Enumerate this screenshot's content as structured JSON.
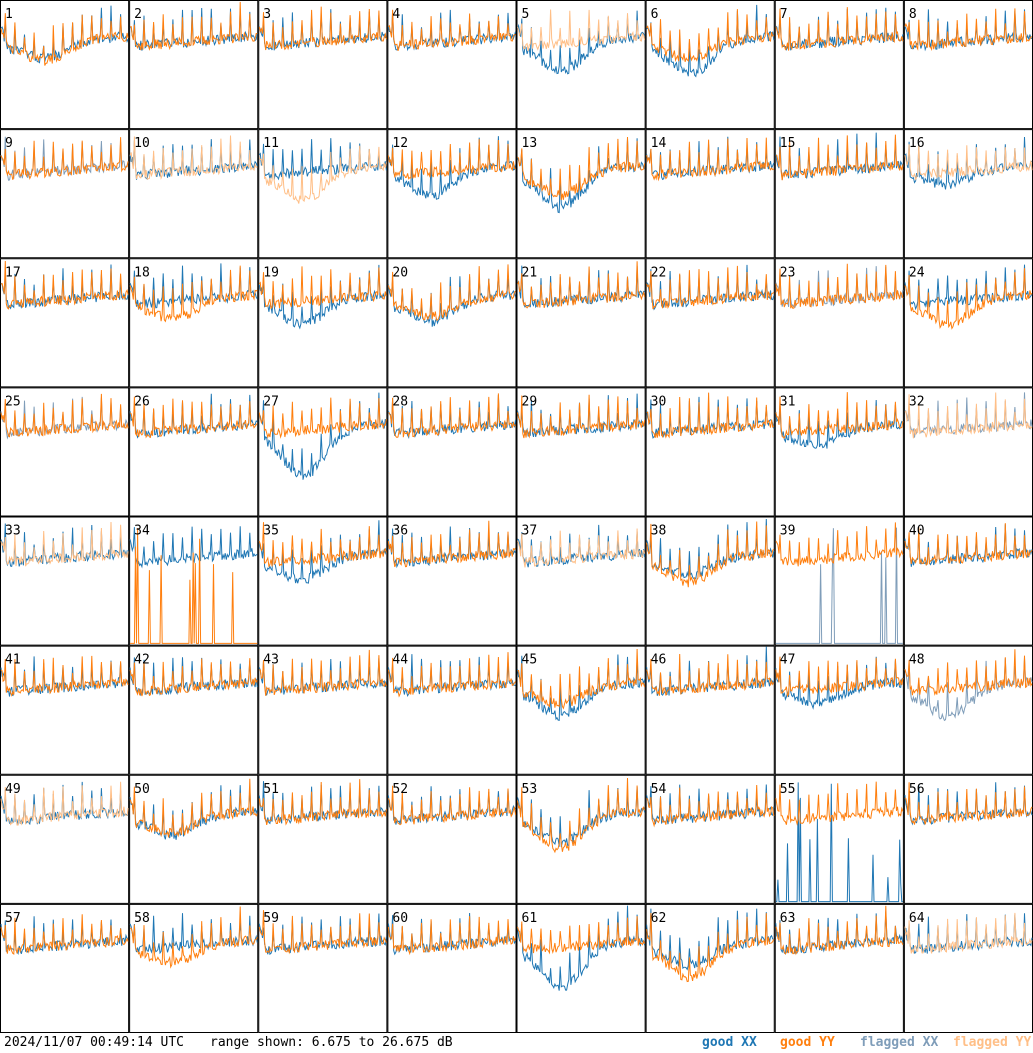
{
  "chart_data": {
    "type": "line",
    "layout": "small-multiples 8x8",
    "panel_labels": [
      "1",
      "2",
      "3",
      "4",
      "5",
      "6",
      "7",
      "8",
      "9",
      "10",
      "11",
      "12",
      "13",
      "14",
      "15",
      "16",
      "17",
      "18",
      "19",
      "20",
      "21",
      "22",
      "23",
      "24",
      "25",
      "26",
      "27",
      "28",
      "29",
      "30",
      "31",
      "32",
      "33",
      "34",
      "35",
      "36",
      "37",
      "38",
      "39",
      "40",
      "41",
      "42",
      "43",
      "44",
      "45",
      "46",
      "47",
      "48",
      "49",
      "50",
      "51",
      "52",
      "53",
      "54",
      "55",
      "56",
      "57",
      "58",
      "59",
      "60",
      "61",
      "62",
      "63",
      "64"
    ],
    "x": "channel index (not labelled)",
    "ylim": [
      6.675,
      26.675
    ],
    "yunit": "dB",
    "series": [
      {
        "name": "good XX",
        "color": "#1f77b4"
      },
      {
        "name": "good YY",
        "color": "#ff7f0e"
      },
      {
        "name": "flagged XX",
        "color": "#7f9db9"
      },
      {
        "name": "flagged YY",
        "color": "#ffbf87"
      }
    ],
    "panel_status": {
      "flagged_xx": [
        9,
        23,
        25,
        32,
        39,
        48
      ],
      "flagged_yy": [
        5,
        10,
        11,
        16,
        32,
        33,
        37,
        49,
        64
      ],
      "dropouts_xx": [
        39,
        55
      ],
      "dropouts_yy": [
        34
      ]
    },
    "panel_profiles": {
      "dip_xx": {
        "5": 0.55,
        "6": 0.6,
        "12": 0.45,
        "13": 0.7,
        "16": 0.25,
        "19": 0.45,
        "20": 0.4,
        "27": 0.9,
        "31": 0.3,
        "35": 0.4,
        "45": 0.55,
        "47": 0.3,
        "48": 0.55,
        "53": 0.5,
        "61": 0.8,
        "62": 0.35,
        "1": 0.3,
        "38": 0.3,
        "50": 0.35
      },
      "dip_yy": {
        "1": 0.35,
        "6": 0.3,
        "11": 0.55,
        "13": 0.45,
        "18": 0.35,
        "20": 0.3,
        "24": 0.45,
        "38": 0.45,
        "45": 0.3,
        "53": 0.6,
        "58": 0.3,
        "62": 0.6,
        "50": 0.3
      }
    }
  },
  "footer": {
    "timestamp": "2024/11/07 00:49:14 UTC",
    "range": "range shown: 6.675 to 26.675 dB",
    "legend": [
      "good XX",
      "good YY",
      "flagged XX",
      "flagged YY"
    ]
  }
}
